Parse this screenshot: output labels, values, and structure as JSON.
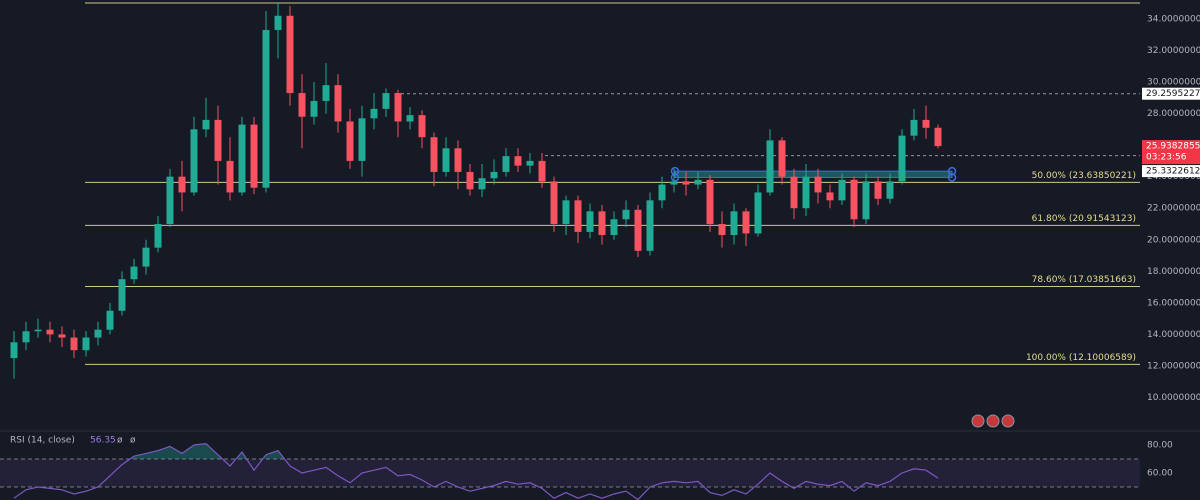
{
  "chart_data": {
    "type": "candlestick",
    "ylim": [
      7.94,
      35.2
    ],
    "yticks": [
      {
        "value": 10,
        "label": "10.00000000"
      },
      {
        "value": 12,
        "label": "12.00000000"
      },
      {
        "value": 14,
        "label": "14.00000000"
      },
      {
        "value": 16,
        "label": "16.00000000"
      },
      {
        "value": 18,
        "label": "18.00000000"
      },
      {
        "value": 20,
        "label": "20.00000000"
      },
      {
        "value": 22,
        "label": "22.00000000"
      },
      {
        "value": 24,
        "label": "24.00000000"
      },
      {
        "value": 26,
        "label": "26.00000000"
      },
      {
        "value": 28,
        "label": "28.00000000"
      },
      {
        "value": 30,
        "label": "30.00000000"
      },
      {
        "value": 32,
        "label": "32.00000000"
      },
      {
        "value": 34,
        "label": "34.00000000"
      }
    ],
    "grid": false,
    "up_color": "#22ab94",
    "down_color": "#f7525f",
    "open": [
      12.5,
      13.5,
      14.2,
      14.3,
      14,
      13.8,
      13,
      13.8,
      14.3,
      15.5,
      17.5,
      18.3,
      19.5,
      21,
      24,
      23,
      27,
      27.6,
      25,
      23,
      27.3,
      23.3,
      33.3,
      34.2,
      29.3,
      27.8,
      28.8,
      29.8,
      27.5,
      25,
      27.7,
      28.3,
      29.3,
      27.5,
      27.9,
      26.5,
      24.3,
      25.8,
      24.3,
      23.2,
      23.9,
      24.3,
      25.3,
      24.7,
      25,
      23.7,
      21,
      22.5,
      20.5,
      21.8,
      20.3,
      21.3,
      21.9,
      19.3,
      22.5,
      23.5,
      23.7,
      23.5,
      23.8,
      21,
      20.3,
      21.8,
      20.4,
      23,
      26.3,
      24,
      22,
      24,
      23,
      22.5,
      23.8,
      21.3,
      23.7,
      22.6,
      23.7,
      26.6,
      27.6,
      27.1
    ],
    "high": [
      14.2,
      14.8,
      15,
      14.8,
      14.5,
      14.3,
      14.2,
      14.8,
      16,
      18,
      18.8,
      20,
      21.5,
      24.5,
      25,
      27.8,
      29,
      28.5,
      26.5,
      27.8,
      27.8,
      34.5,
      35,
      34.8,
      30.5,
      30,
      31.2,
      30.5,
      28.3,
      28.5,
      29.3,
      29.6,
      29.5,
      28.4,
      28.2,
      26.8,
      26.5,
      26.3,
      24.8,
      24.8,
      25.1,
      25.8,
      25.8,
      25.5,
      25.5,
      24,
      22.8,
      22.8,
      22.3,
      22.2,
      21.8,
      22.5,
      22.2,
      23,
      24,
      24.5,
      24.3,
      24.3,
      24.1,
      21.8,
      22.3,
      22,
      23.5,
      27,
      26.5,
      24.5,
      24.8,
      24.5,
      23.5,
      24.2,
      24,
      24.2,
      24,
      24.2,
      27,
      28.3,
      28.5,
      27.3
    ],
    "low": [
      11.2,
      13,
      13.8,
      13.5,
      13.2,
      12.5,
      12.6,
      13.3,
      14,
      15.2,
      17.2,
      17.8,
      19.2,
      20.8,
      21.8,
      22.8,
      26.5,
      23.5,
      22.5,
      22.8,
      22.9,
      23,
      31.5,
      28.5,
      25.8,
      27.3,
      28,
      26.8,
      24.5,
      24,
      27,
      27.8,
      26.5,
      27,
      25.8,
      23.4,
      24,
      23.2,
      22.8,
      22.7,
      23.5,
      24,
      24.3,
      24.2,
      23.3,
      20.5,
      20.3,
      19.8,
      20.1,
      19.7,
      20,
      20.8,
      18.9,
      19,
      22,
      23,
      22.8,
      23.2,
      20.5,
      19.5,
      19.7,
      19.6,
      20.2,
      22.8,
      23.5,
      21.3,
      21.5,
      22.3,
      22,
      22.2,
      20.8,
      21,
      22.2,
      22.3,
      23.5,
      26.3,
      26.4,
      25.8
    ],
    "close": [
      13.5,
      14.2,
      14.3,
      14,
      13.8,
      13,
      13.8,
      14.3,
      15.5,
      17.5,
      18.3,
      19.5,
      21,
      24,
      23,
      27,
      27.6,
      25,
      23,
      27.3,
      23.3,
      33.3,
      34.2,
      29.3,
      27.8,
      28.8,
      29.8,
      27.5,
      25,
      27.7,
      28.3,
      29.3,
      27.5,
      27.9,
      26.5,
      24.3,
      25.8,
      24.3,
      23.2,
      23.9,
      24.3,
      25.3,
      24.7,
      25,
      23.7,
      21,
      22.5,
      20.5,
      21.8,
      20.3,
      21.3,
      21.9,
      19.3,
      22.5,
      23.5,
      23.7,
      23.5,
      23.8,
      21,
      20.3,
      21.8,
      20.4,
      23,
      26.3,
      24,
      22,
      24,
      23,
      22.5,
      23.8,
      21.3,
      23.7,
      22.6,
      23.7,
      26.6,
      27.6,
      27.1,
      25.93828558
    ],
    "top_line": 35.01,
    "fib_levels": [
      {
        "value": 23.63850221,
        "label": "50.00% (23.63850221)"
      },
      {
        "value": 20.91543123,
        "label": "61.80% (20.91543123)"
      },
      {
        "value": 17.03851663,
        "label": "78.60% (17.03851663)"
      },
      {
        "value": 12.10006589,
        "label": "100.00% (12.10006589)"
      }
    ],
    "zone_range": [
      23.95,
      24.35
    ],
    "marker_lines": [
      {
        "value": 29.25952279,
        "label": "29.25952279"
      },
      {
        "value": 25.33226124,
        "label": "25.33226124"
      }
    ],
    "last_price": {
      "value": 25.93828558,
      "label": "25.93828558"
    },
    "countdown": "03:23:56",
    "rsi": {
      "title": "RSI (14, close)",
      "current": 56.35,
      "symbols": [
        "ø",
        "ø"
      ],
      "ylim": [
        40.7,
        89.3
      ],
      "yticks": [
        {
          "value": 80,
          "label": "80.00"
        },
        {
          "value": 60,
          "label": "60.00"
        }
      ],
      "upper": 70,
      "lower": 50,
      "color": "#7e57c2",
      "values": [
        42,
        48,
        50,
        49,
        48,
        45,
        47,
        50,
        58,
        66,
        72,
        74,
        76,
        79,
        74,
        80,
        81,
        73,
        65,
        75,
        62,
        73,
        76,
        65,
        60,
        62,
        64,
        58,
        53,
        60,
        62,
        64,
        58,
        59,
        55,
        50,
        54,
        50,
        47,
        49,
        51,
        54,
        52,
        53,
        49,
        42,
        46,
        42,
        45,
        42,
        45,
        47,
        41,
        50,
        53,
        54,
        53,
        54,
        46,
        44,
        48,
        45,
        52,
        60,
        54,
        49,
        54,
        52,
        51,
        54,
        47,
        53,
        51,
        54,
        60,
        63,
        62,
        56.35
      ]
    }
  }
}
